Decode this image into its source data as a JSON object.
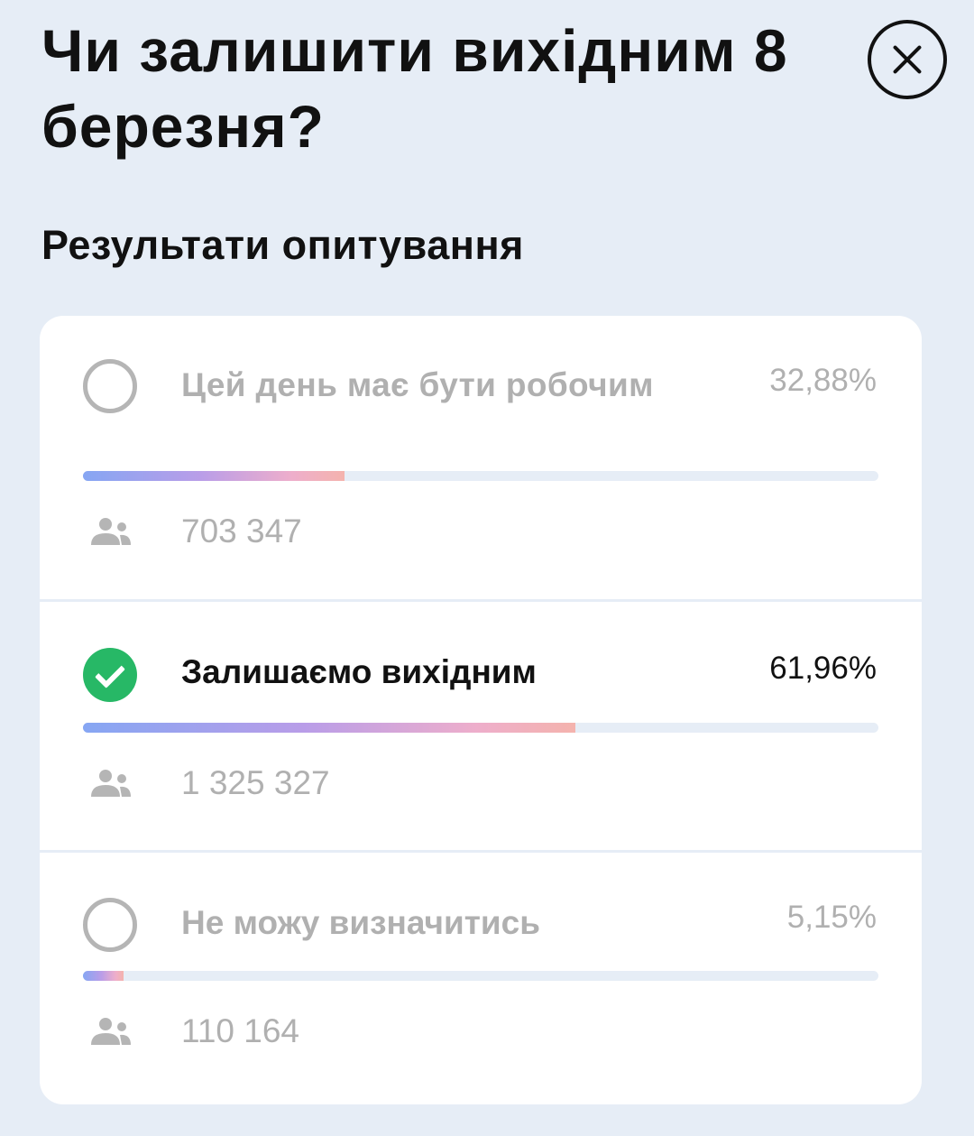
{
  "header": {
    "title": "Чи залишити вихідним 8 березня?",
    "close_icon": "close-icon"
  },
  "subtitle": "Результати опитування",
  "colors": {
    "background": "#e6edf6",
    "selected": "#27b866",
    "muted_text": "#b0b0b0"
  },
  "options": [
    {
      "label": "Цей день має бути робочим",
      "percent_text": "32,88%",
      "percent": 32.88,
      "votes": "703 347",
      "selected": false
    },
    {
      "label": "Залишаємо вихідним",
      "percent_text": "61,96%",
      "percent": 61.96,
      "votes": "1 325 327",
      "selected": true
    },
    {
      "label": "Не можу визначитись",
      "percent_text": "5,15%",
      "percent": 5.15,
      "votes": "110 164",
      "selected": false
    }
  ]
}
